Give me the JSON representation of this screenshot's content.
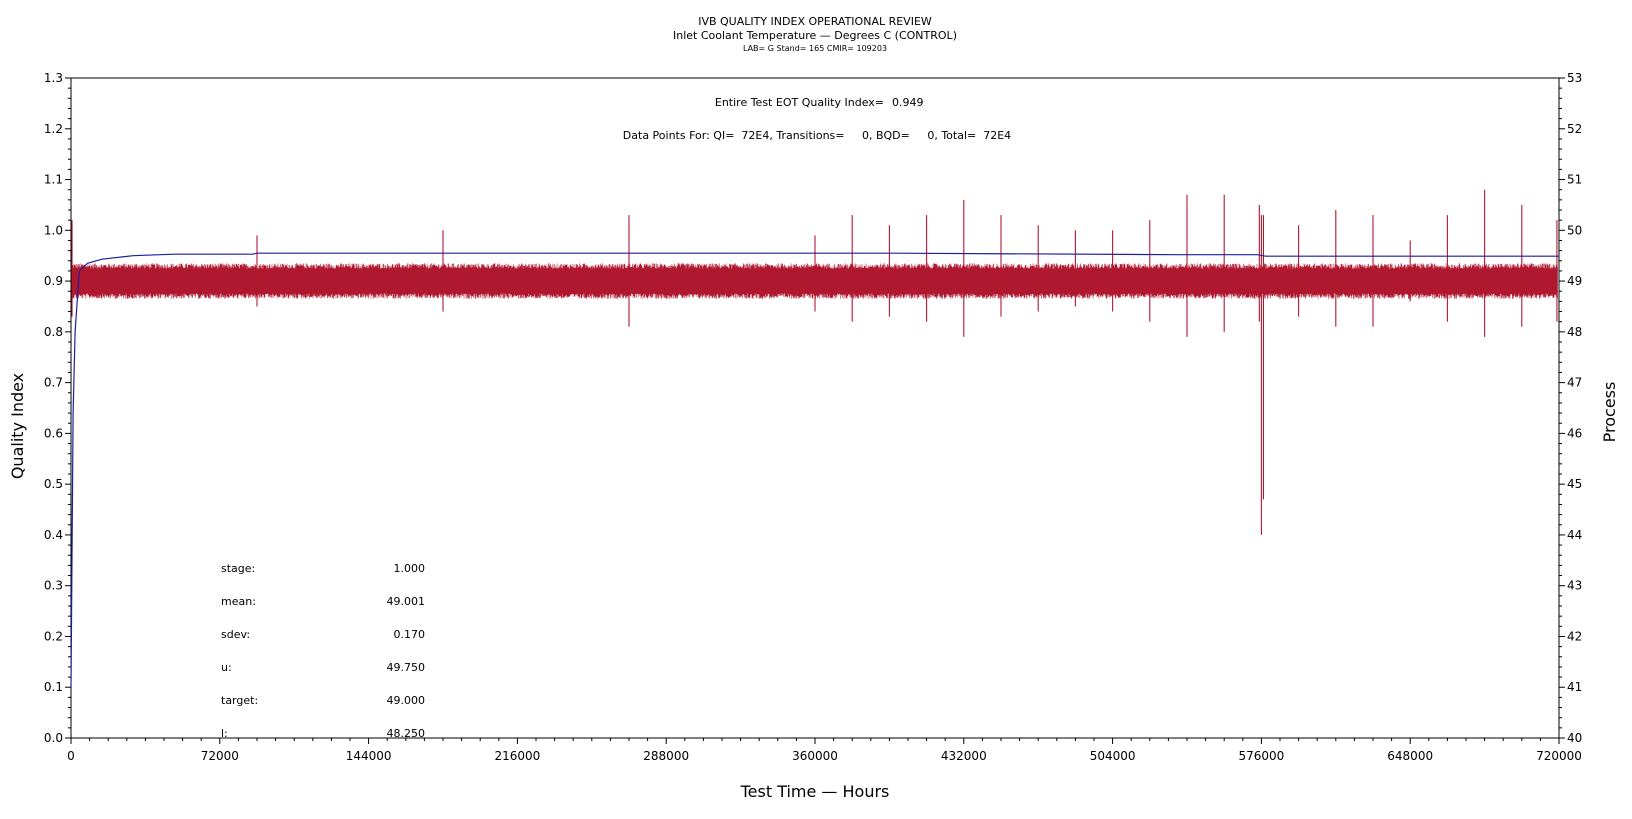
{
  "chart_data": {
    "type": "line",
    "title": "IVB QUALITY INDEX OPERATIONAL REVIEW",
    "subtitle": "Inlet Coolant Temperature — Degrees C (CONTROL)",
    "subtitle2": "LAB= G Stand= 165 CMIR= 109203",
    "xlabel": "Test Time — Hours",
    "ylabel_left": "Quality Index",
    "ylabel_right": "Process",
    "xlim": [
      0,
      720000
    ],
    "ylim_left": [
      0.0,
      1.3
    ],
    "ylim_right": [
      40,
      53
    ],
    "x_ticks": [
      "0",
      "72000",
      "144000",
      "216000",
      "288000",
      "360000",
      "432000",
      "504000",
      "576000",
      "648000",
      "720000"
    ],
    "y_ticks_left": [
      "0.0",
      "0.1",
      "0.2",
      "0.3",
      "0.4",
      "0.5",
      "0.6",
      "0.7",
      "0.8",
      "0.9",
      "1.0",
      "1.1",
      "1.2",
      "1.3"
    ],
    "y_ticks_right": [
      "40",
      "41",
      "42",
      "43",
      "44",
      "45",
      "46",
      "47",
      "48",
      "49",
      "50",
      "51",
      "52",
      "53"
    ],
    "grid": false,
    "series": [
      {
        "name": "Quality Index",
        "axis": "left",
        "color": "#1f1f9e",
        "x": [
          0,
          1000,
          2000,
          4000,
          8000,
          15000,
          30000,
          50000,
          88000,
          90000,
          115000,
          200000,
          300000,
          400000,
          535000,
          574000,
          578000,
          600000,
          720000
        ],
        "y": [
          0.1,
          0.64,
          0.8,
          0.92,
          0.935,
          0.943,
          0.95,
          0.953,
          0.953,
          0.955,
          0.955,
          0.955,
          0.955,
          0.955,
          0.952,
          0.952,
          0.949,
          0.949,
          0.949
        ]
      },
      {
        "name": "Process",
        "axis": "right",
        "color": "#b01830",
        "band_center": 49.0,
        "band_halfwidth": 0.35,
        "spikes": [
          {
            "x": 500,
            "high": 50.2,
            "low": 48.3
          },
          {
            "x": 90000,
            "high": 49.9,
            "low": 48.5
          },
          {
            "x": 180000,
            "high": 50.0,
            "low": 48.4
          },
          {
            "x": 270000,
            "high": 50.3,
            "low": 48.1
          },
          {
            "x": 360000,
            "high": 49.9,
            "low": 48.4
          },
          {
            "x": 378000,
            "high": 50.3,
            "low": 48.2
          },
          {
            "x": 396000,
            "high": 50.1,
            "low": 48.3
          },
          {
            "x": 414000,
            "high": 50.3,
            "low": 48.2
          },
          {
            "x": 432000,
            "high": 50.6,
            "low": 47.9
          },
          {
            "x": 450000,
            "high": 50.3,
            "low": 48.3
          },
          {
            "x": 468000,
            "high": 50.1,
            "low": 48.4
          },
          {
            "x": 486000,
            "high": 50.0,
            "low": 48.5
          },
          {
            "x": 504000,
            "high": 50.0,
            "low": 48.4
          },
          {
            "x": 522000,
            "high": 50.2,
            "low": 48.2
          },
          {
            "x": 540000,
            "high": 50.7,
            "low": 47.9
          },
          {
            "x": 558000,
            "high": 50.7,
            "low": 48.0
          },
          {
            "x": 575000,
            "high": 50.5,
            "low": 48.2
          },
          {
            "x": 576000,
            "high": 50.3,
            "low": 44.0
          },
          {
            "x": 577000,
            "high": 50.3,
            "low": 44.7
          },
          {
            "x": 594000,
            "high": 50.1,
            "low": 48.3
          },
          {
            "x": 612000,
            "high": 50.4,
            "low": 48.1
          },
          {
            "x": 630000,
            "high": 50.3,
            "low": 48.1
          },
          {
            "x": 648000,
            "high": 49.8,
            "low": 48.6
          },
          {
            "x": 666000,
            "high": 50.3,
            "low": 48.2
          },
          {
            "x": 684000,
            "high": 50.8,
            "low": 47.9
          },
          {
            "x": 702000,
            "high": 50.5,
            "low": 48.1
          },
          {
            "x": 719000,
            "high": 50.2,
            "low": 48.2
          }
        ]
      }
    ],
    "annotations": {
      "eot_label": "Entire Test EOT Quality Index=",
      "eot_value": "0.949",
      "points_line": "Data Points For: QI=  72E4, Transitions=     0, BQD=     0, Total=  72E4"
    },
    "stats": [
      {
        "label": "stage:",
        "value": "1.000"
      },
      {
        "label": "mean:",
        "value": "49.001"
      },
      {
        "label": "sdev:",
        "value": "0.170"
      },
      {
        "label": "u:",
        "value": "49.750"
      },
      {
        "label": "target:",
        "value": "49.000"
      },
      {
        "label": "l:",
        "value": "48.250"
      }
    ]
  }
}
